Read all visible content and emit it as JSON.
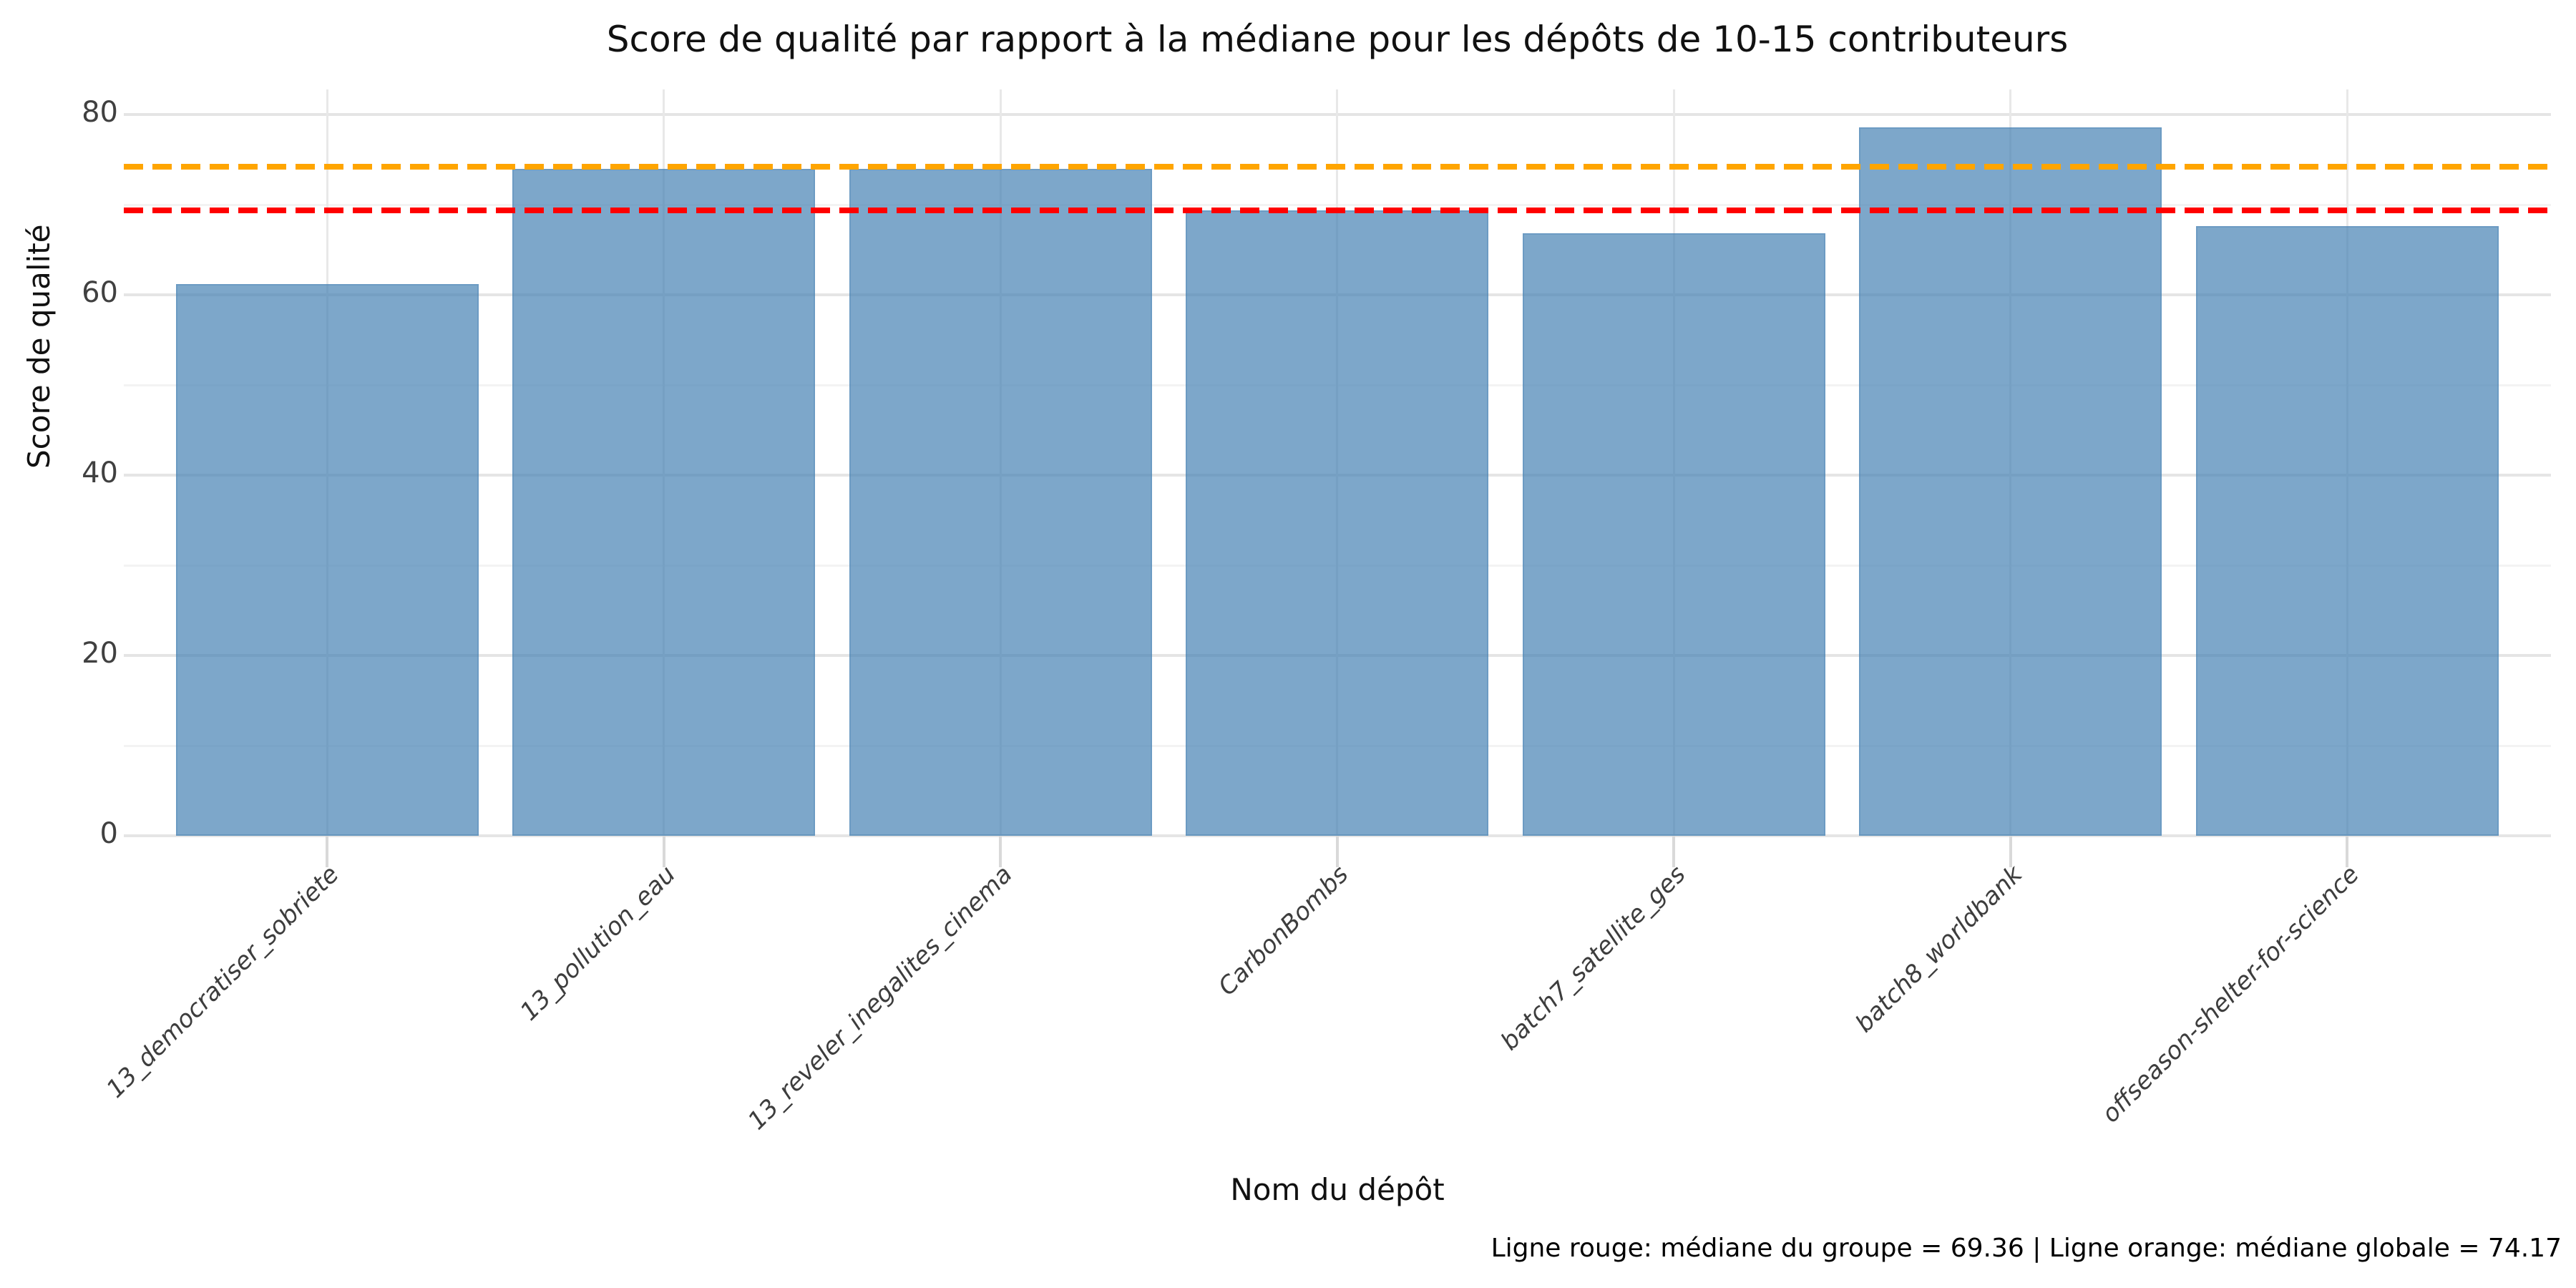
{
  "figure": {
    "title": "Score de qualité par rapport à la médiane pour les dépôts de 10-15 contributeurs",
    "x_axis_label": "Nom du dépôt",
    "y_axis_label": "Score de qualité",
    "footnote": "Ligne rouge: médiane du groupe = 69.36 | Ligne orange: médiane globale = 74.17"
  },
  "chart_data": {
    "type": "bar",
    "title": "Score de qualité par rapport à la médiane pour les dépôts de 10-15 contributeurs",
    "xlabel": "Nom du dépôt",
    "ylabel": "Score de qualité",
    "categories": [
      "13_democratiser_sobriete",
      "13_pollution_eau",
      "13_reveler_inegalites_cinema",
      "CarbonBombs",
      "batch7_satellite_ges",
      "batch8_worldbank",
      "offseason-shelter-for-science"
    ],
    "values": [
      61.2,
      74.0,
      74.0,
      69.36,
      66.8,
      78.6,
      67.6
    ],
    "ylim": [
      0,
      82.8
    ],
    "yticks": [
      0,
      20,
      40,
      60,
      80
    ],
    "yticks_minor": [
      10,
      30,
      50,
      70
    ],
    "grid": true,
    "legend_position": "none",
    "reference_lines": [
      {
        "name": "médiane du groupe",
        "value": 69.36,
        "color": "#ff0000",
        "style": "dashed"
      },
      {
        "name": "médiane globale",
        "value": 74.17,
        "color": "#ffa500",
        "style": "dashed"
      }
    ],
    "bar_color": "#4682b4",
    "bar_opacity": 0.7,
    "annotation": "Ligne rouge: médiane du groupe = 69.36 | Ligne orange: médiane globale = 74.17"
  },
  "colors": {
    "background": "#ffffff",
    "grid_major": "#e5e5e5",
    "grid_minor": "#f3f3f3",
    "grid_vertical": "#e8e8e8",
    "tick_label": "#404040",
    "bar_fill": "#4682b4",
    "red_line": "#ff0000",
    "orange_line": "#ffa500"
  }
}
